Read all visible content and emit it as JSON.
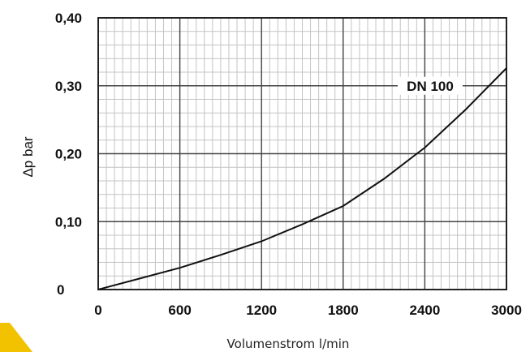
{
  "chart_data": {
    "type": "line",
    "xlabel": "Volumenstrom l/min",
    "ylabel": "Δp bar",
    "xlim": [
      0,
      3000
    ],
    "ylim": [
      0,
      0.4
    ],
    "x_ticks": [
      0,
      600,
      1200,
      1800,
      2400,
      3000
    ],
    "x_tick_labels": [
      "0",
      "600",
      "1200",
      "1800",
      "2400",
      "3000"
    ],
    "y_ticks": [
      0,
      0.1,
      0.2,
      0.3,
      0.4
    ],
    "y_tick_labels": [
      "0",
      "0,10",
      "0,20",
      "0,30",
      "0,40"
    ],
    "grid": true,
    "series": [
      {
        "name": "DN 100",
        "x": [
          0,
          300,
          600,
          900,
          1200,
          1500,
          1800,
          2100,
          2400,
          2700,
          3000
        ],
        "y": [
          0,
          0.016,
          0.032,
          0.051,
          0.071,
          0.096,
          0.123,
          0.163,
          0.209,
          0.265,
          0.326
        ]
      }
    ],
    "colors": {
      "line": "#111111",
      "grid_major": "#444444",
      "grid_minor": "#c4c4c4"
    }
  }
}
